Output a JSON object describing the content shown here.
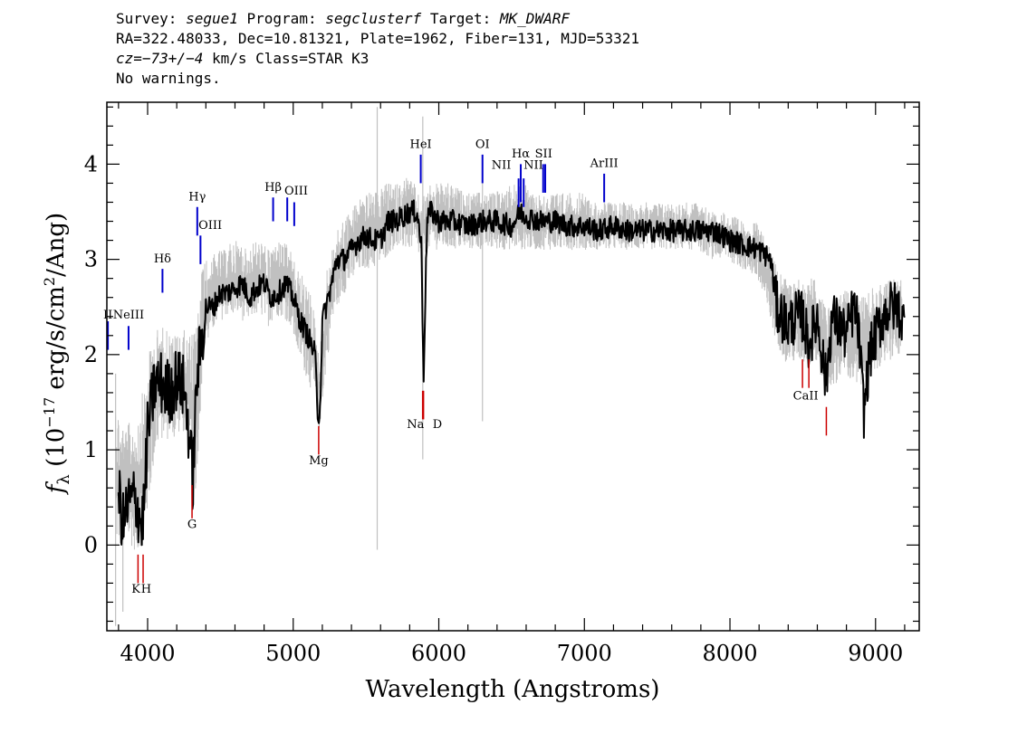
{
  "header": {
    "line1": {
      "survey_label": "Survey:",
      "survey": "segue1",
      "program_label": "Program:",
      "program": "segclusterf",
      "target_label": "Target:",
      "target": "MK_DWARF"
    },
    "line2": "RA=322.48033, Dec=10.81321, Plate=1962, Fiber=131, MJD=53321",
    "line3": {
      "cz_label": "cz",
      "cz_value": "=−73+/−4",
      "cz_unit": "km/s Class=STAR K3"
    },
    "line4": "No warnings."
  },
  "colors": {
    "flux": "#000000",
    "error": "#c0c0c0",
    "emission": "#0000cc",
    "absorption": "#cc0000",
    "frame": "#000000"
  },
  "chart_data": {
    "type": "line",
    "xlabel": "Wavelength (Angstroms)",
    "ylabel": "fλ (10⁻¹⁷ erg/s/cm²/Ang)",
    "xlim": [
      3720,
      9300
    ],
    "ylim": [
      -0.9,
      4.65
    ],
    "xticks": [
      4000,
      5000,
      6000,
      7000,
      8000,
      9000
    ],
    "yticks": [
      0,
      1,
      2,
      3,
      4
    ],
    "grid": false,
    "series": [
      {
        "role": "flux",
        "x": [
          3800,
          3830,
          3860,
          3900,
          3930,
          3960,
          3980,
          4000,
          4050,
          4100,
          4150,
          4200,
          4250,
          4290,
          4310,
          4340,
          4400,
          4450,
          4500,
          4550,
          4600,
          4650,
          4700,
          4750,
          4800,
          4850,
          4900,
          4950,
          5000,
          5050,
          5100,
          5150,
          5170,
          5185,
          5200,
          5250,
          5300,
          5350,
          5400,
          5450,
          5500,
          5550,
          5600,
          5650,
          5700,
          5750,
          5800,
          5850,
          5880,
          5895,
          5920,
          5950,
          6000,
          6100,
          6200,
          6300,
          6400,
          6500,
          6560,
          6600,
          6700,
          6800,
          6900,
          7000,
          7100,
          7200,
          7300,
          7400,
          7500,
          7600,
          7700,
          7800,
          7900,
          8000,
          8100,
          8200,
          8280,
          8320,
          8400,
          8450,
          8500,
          8540,
          8600,
          8660,
          8700,
          8750,
          8800,
          8850,
          8880,
          8920,
          8960,
          9000,
          9050,
          9100,
          9150,
          9200
        ],
        "y": [
          0.6,
          0.2,
          0.4,
          0.5,
          0.4,
          0.2,
          0.5,
          1.2,
          1.7,
          1.7,
          1.6,
          1.75,
          1.65,
          1.1,
          0.65,
          1.8,
          2.5,
          2.5,
          2.65,
          2.65,
          2.7,
          2.75,
          2.6,
          2.7,
          2.75,
          2.6,
          2.65,
          2.75,
          2.6,
          2.35,
          2.2,
          2.0,
          1.35,
          1.45,
          2.35,
          2.65,
          3.0,
          3.0,
          3.1,
          3.2,
          3.25,
          3.2,
          3.2,
          3.4,
          3.4,
          3.45,
          3.5,
          3.5,
          3.15,
          1.75,
          3.45,
          3.5,
          3.4,
          3.4,
          3.35,
          3.4,
          3.4,
          3.35,
          3.5,
          3.45,
          3.4,
          3.4,
          3.35,
          3.35,
          3.3,
          3.35,
          3.3,
          3.3,
          3.3,
          3.3,
          3.3,
          3.3,
          3.3,
          3.2,
          3.15,
          3.1,
          3.0,
          2.5,
          2.3,
          2.4,
          2.4,
          2.1,
          2.4,
          1.7,
          2.4,
          2.3,
          2.2,
          2.5,
          2.3,
          1.4,
          2.0,
          2.2,
          2.4,
          2.5,
          2.5,
          2.3
        ]
      },
      {
        "role": "error",
        "x": [
          3780,
          3830,
          3880,
          3930,
          3980,
          4030,
          4080,
          4130,
          4180,
          4230,
          4280,
          4330,
          4380,
          4430,
          4480,
          4530,
          4580,
          4630,
          4680,
          4730,
          4780,
          4830,
          4880,
          4930,
          4980,
          5030,
          5080,
          5130,
          5180,
          5230,
          5280,
          5330,
          5380,
          5430,
          5480,
          5530,
          5580,
          5630,
          5680,
          5730,
          5780,
          5830,
          5880,
          5930,
          5980,
          6080,
          6180,
          6280,
          6380,
          6480,
          6580,
          6680,
          6780,
          6880,
          6980,
          7080,
          7180,
          7280,
          7380,
          7480,
          7580,
          7680,
          7780,
          7880,
          7980,
          8080,
          8180,
          8280,
          8380,
          8480,
          8580,
          8680,
          8780,
          8880,
          8980,
          9080,
          9180
        ],
        "lower": [
          0.0,
          -0.1,
          0.0,
          -0.1,
          0.1,
          0.7,
          1.1,
          1.1,
          1.1,
          1.2,
          1.1,
          0.5,
          1.9,
          2.2,
          2.3,
          2.4,
          2.4,
          2.4,
          2.3,
          2.4,
          2.4,
          2.3,
          2.4,
          2.4,
          2.3,
          2.0,
          1.8,
          1.6,
          1.2,
          1.9,
          2.4,
          2.6,
          2.7,
          2.8,
          2.9,
          2.9,
          2.9,
          3.0,
          3.1,
          3.1,
          3.1,
          3.1,
          3.0,
          3.1,
          3.1,
          3.1,
          3.1,
          3.1,
          3.1,
          3.1,
          3.1,
          3.1,
          3.1,
          3.1,
          3.1,
          3.1,
          3.1,
          3.1,
          3.1,
          3.1,
          3.1,
          3.1,
          3.1,
          3.0,
          3.0,
          2.9,
          2.8,
          2.3,
          1.9,
          1.9,
          1.9,
          1.6,
          1.8,
          1.6,
          1.8,
          1.9,
          2.0
        ],
        "upper": [
          1.6,
          1.2,
          1.3,
          1.4,
          1.7,
          2.2,
          2.3,
          2.3,
          2.2,
          2.3,
          2.2,
          2.3,
          3.0,
          3.0,
          3.1,
          3.1,
          3.2,
          3.2,
          3.1,
          3.2,
          3.2,
          3.1,
          3.2,
          3.2,
          3.1,
          2.9,
          2.8,
          2.6,
          2.0,
          2.9,
          3.2,
          3.4,
          3.5,
          3.6,
          3.7,
          3.7,
          3.7,
          3.8,
          3.8,
          3.8,
          3.9,
          3.8,
          3.6,
          3.8,
          3.8,
          3.8,
          3.7,
          3.7,
          3.7,
          3.8,
          3.8,
          3.7,
          3.7,
          3.7,
          3.7,
          3.6,
          3.6,
          3.6,
          3.6,
          3.6,
          3.6,
          3.6,
          3.6,
          3.5,
          3.5,
          3.4,
          3.4,
          3.1,
          2.8,
          2.8,
          2.8,
          2.5,
          2.7,
          2.6,
          2.7,
          2.8,
          2.8
        ]
      }
    ],
    "emission_lines": [
      {
        "label": "OII",
        "x": 3727,
        "y0": 2.05,
        "y1": 2.35
      },
      {
        "label": "NeIII",
        "x": 3869,
        "y0": 2.05,
        "y1": 2.3
      },
      {
        "label": "Hδ",
        "x": 4102,
        "y0": 2.65,
        "y1": 2.9
      },
      {
        "label": "Hγ",
        "x": 4341,
        "y0": 3.25,
        "y1": 3.55
      },
      {
        "label": "OIII",
        "x": 4363,
        "y0": 2.95,
        "y1": 3.25
      },
      {
        "label": "Hβ",
        "x": 4862,
        "y0": 3.4,
        "y1": 3.65
      },
      {
        "label": "OIII",
        "x": 4959,
        "y0": 3.4,
        "y1": 3.65
      },
      {
        "label": "OIII",
        "x": 5007,
        "y0": 3.35,
        "y1": 3.6
      },
      {
        "label": "HeI",
        "x": 5876,
        "y0": 3.8,
        "y1": 4.1
      },
      {
        "label": "OI",
        "x": 6300,
        "y0": 3.8,
        "y1": 4.1
      },
      {
        "label": "NII",
        "x": 6548,
        "y0": 3.55,
        "y1": 3.85
      },
      {
        "label": "Hα",
        "x": 6563,
        "y0": 3.6,
        "y1": 4.0
      },
      {
        "label": "NII",
        "x": 6583,
        "y0": 3.55,
        "y1": 3.85
      },
      {
        "label": "SII",
        "x": 6717,
        "y0": 3.7,
        "y1": 4.0
      },
      {
        "label": "SII",
        "x": 6731,
        "y0": 3.7,
        "y1": 4.0
      },
      {
        "label": "ArIII",
        "x": 7136,
        "y0": 3.6,
        "y1": 3.9
      }
    ],
    "emission_labels": [
      {
        "text": "II",
        "x": 3727,
        "y": 2.38
      },
      {
        "text": "NeIII",
        "x": 3869,
        "y": 2.38
      },
      {
        "text": "Hδ",
        "x": 4102,
        "y": 2.97
      },
      {
        "text": "Hγ",
        "x": 4341,
        "y": 3.62
      },
      {
        "text": "OIII",
        "x": 4430,
        "y": 3.32
      },
      {
        "text": "Hβ",
        "x": 4862,
        "y": 3.72
      },
      {
        "text": "OIII",
        "x": 5020,
        "y": 3.68
      },
      {
        "text": "HeI",
        "x": 5876,
        "y": 4.17
      },
      {
        "text": "OI",
        "x": 6300,
        "y": 4.17
      },
      {
        "text": "NII",
        "x": 6430,
        "y": 3.95
      },
      {
        "text": "Hα",
        "x": 6563,
        "y": 4.07
      },
      {
        "text": "SII",
        "x": 6720,
        "y": 4.07
      },
      {
        "text": "NII",
        "x": 6650,
        "y": 3.95
      },
      {
        "text": "ArIII",
        "x": 7136,
        "y": 3.97
      }
    ],
    "absorption_lines": [
      {
        "label": "K",
        "x": 3934,
        "y0": -0.4,
        "y1": -0.1
      },
      {
        "label": "H",
        "x": 3969,
        "y0": -0.4,
        "y1": -0.1
      },
      {
        "label": "G",
        "x": 4305,
        "y0": 0.28,
        "y1": 0.63
      },
      {
        "label": "Mg",
        "x": 5175,
        "y0": 0.95,
        "y1": 1.25
      },
      {
        "label": "Na",
        "x": 5889,
        "y0": 1.32,
        "y1": 1.62
      },
      {
        "label": "Na",
        "x": 5895,
        "y0": 1.32,
        "y1": 1.62
      },
      {
        "label": "CaII",
        "x": 8498,
        "y0": 1.65,
        "y1": 1.95
      },
      {
        "label": "CaII",
        "x": 8542,
        "y0": 1.65,
        "y1": 1.95
      },
      {
        "label": "CaII",
        "x": 8662,
        "y0": 1.15,
        "y1": 1.45
      }
    ],
    "absorption_labels": [
      {
        "text": "K",
        "x": 3920,
        "y": -0.5
      },
      {
        "text": "H",
        "x": 3990,
        "y": -0.5
      },
      {
        "text": "G",
        "x": 4305,
        "y": 0.18
      },
      {
        "text": "Mg",
        "x": 5175,
        "y": 0.85
      },
      {
        "text": "Na",
        "x": 5840,
        "y": 1.23
      },
      {
        "text": "D",
        "x": 5990,
        "y": 1.23
      },
      {
        "text": "CaII",
        "x": 8520,
        "y": 1.53
      }
    ],
    "spikes": [
      {
        "x": 5577,
        "lower": -0.05,
        "upper": 4.6
      },
      {
        "x": 5890,
        "lower": 0.9,
        "upper": 4.5
      },
      {
        "x": 6300,
        "lower": 1.3,
        "upper": 4.1
      },
      {
        "x": 3780,
        "lower": -0.85,
        "upper": 1.8
      },
      {
        "x": 3830,
        "lower": -0.7,
        "upper": 1.2
      }
    ]
  }
}
